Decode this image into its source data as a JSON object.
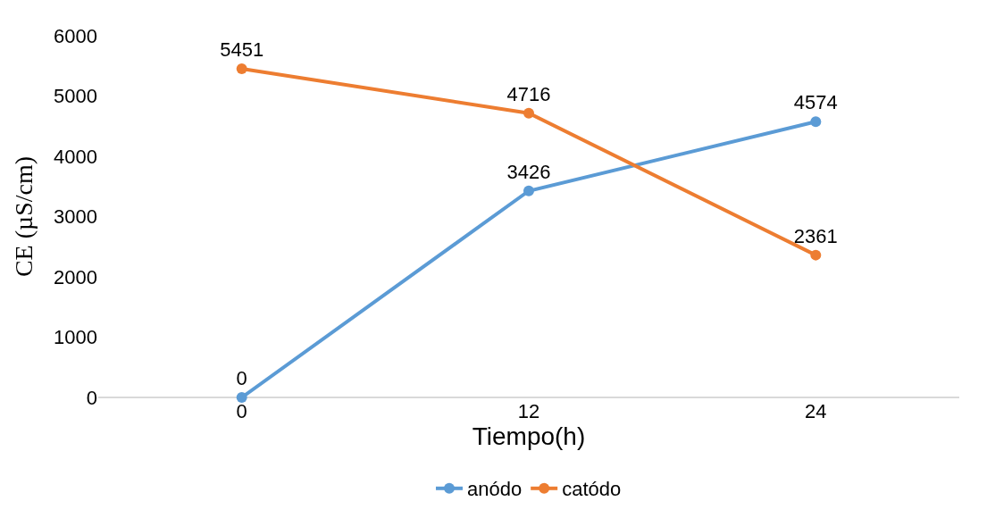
{
  "chart_data": {
    "type": "line",
    "xlabel": "Tiempo(h)",
    "ylabel": "CE (µS/cm)",
    "categories": [
      "0",
      "12",
      "24"
    ],
    "series": [
      {
        "name": "anódo",
        "color": "#5b9bd5",
        "values": [
          0,
          3426,
          4574
        ]
      },
      {
        "name": "catódo",
        "color": "#ed7d31",
        "values": [
          5451,
          4716,
          2361
        ]
      }
    ],
    "ylim": [
      0,
      6000
    ],
    "yticks": [
      0,
      1000,
      2000,
      3000,
      4000,
      5000,
      6000
    ],
    "legend": "bottom",
    "marker": "circle",
    "line_style": "solid",
    "data_labels": true
  }
}
